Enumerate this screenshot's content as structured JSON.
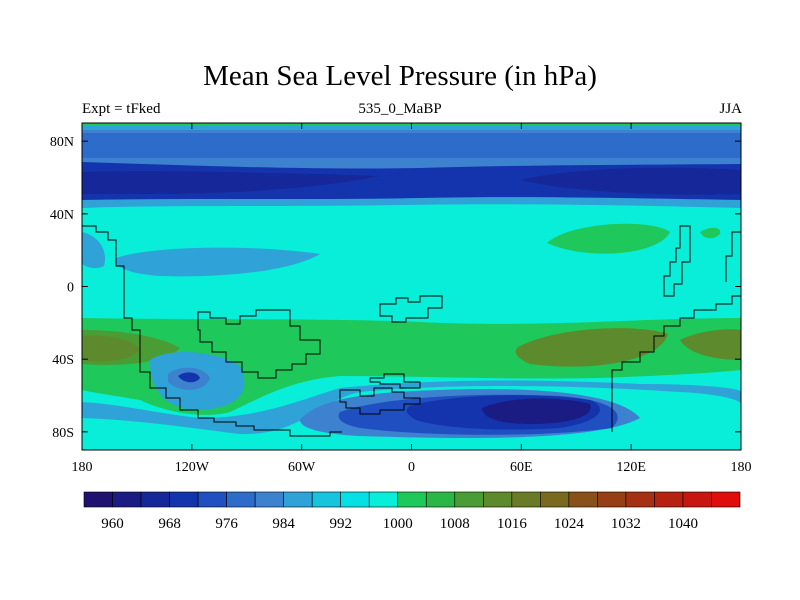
{
  "title": "Mean Sea Level Pressure (in hPa)",
  "left_label": "Expt = tFked",
  "center_label": "535_0_MaBP",
  "right_label": "JJA",
  "map": {
    "projection": "cylindrical-equidistant",
    "lon_range": [
      -180,
      180
    ],
    "lat_range": [
      -90,
      90
    ],
    "lon_ticks": [
      {
        "value": -180,
        "label": "180"
      },
      {
        "value": -120,
        "label": "120W"
      },
      {
        "value": -60,
        "label": "60W"
      },
      {
        "value": 0,
        "label": "0"
      },
      {
        "value": 60,
        "label": "60E"
      },
      {
        "value": 120,
        "label": "120E"
      },
      {
        "value": 180,
        "label": "180"
      }
    ],
    "lat_ticks": [
      {
        "value": 80,
        "label": "80N"
      },
      {
        "value": 40,
        "label": "40N"
      },
      {
        "value": 0,
        "label": "0"
      },
      {
        "value": -40,
        "label": "40S"
      },
      {
        "value": -80,
        "label": "80S"
      }
    ],
    "coastlines": true,
    "fill": "filled-contours"
  },
  "colorbar": {
    "orientation": "horizontal",
    "levels": [
      956,
      960,
      964,
      968,
      972,
      976,
      980,
      984,
      988,
      992,
      996,
      1000,
      1004,
      1008,
      1012,
      1016,
      1020,
      1024,
      1028,
      1032,
      1036,
      1040
    ],
    "colors": [
      "#1e1170",
      "#1a1c84",
      "#16279a",
      "#1434ad",
      "#1f4fc0",
      "#2d6ccb",
      "#3c82cf",
      "#2fa2d8",
      "#17c4de",
      "#05e0e4",
      "#08eed9",
      "#1ec85a",
      "#2bb648",
      "#4a9c35",
      "#5d8a2c",
      "#6a7a26",
      "#7a6a20",
      "#8a5019",
      "#963e15",
      "#a63013",
      "#b62212",
      "#c81511",
      "#e00d0d"
    ],
    "labels": [
      "960",
      "968",
      "976",
      "984",
      "992",
      "1000",
      "1008",
      "1016",
      "1024",
      "1032",
      "1040"
    ]
  }
}
